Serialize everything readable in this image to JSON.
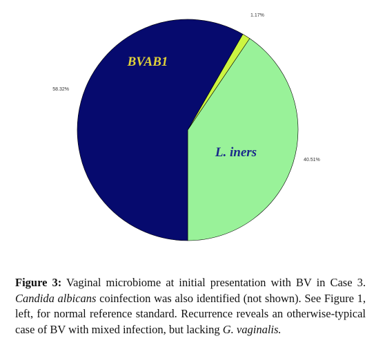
{
  "chart_data": {
    "type": "pie",
    "slices": [
      {
        "label": "L. iners",
        "value": 40.51,
        "value_label": "40.51%",
        "color": "#99f299"
      },
      {
        "label": "",
        "value": 1.17,
        "value_label": "1.17%",
        "color": "#ccf542"
      },
      {
        "label": "BVAB1",
        "value": 58.32,
        "value_label": "58.32%",
        "color": "#060a6e"
      }
    ],
    "start": "6 o'clock, counterclockwise",
    "legend": "none",
    "slice_label_colors": {
      "L. iners": "#1a2a8a",
      "BVAB1": "#e0d23a"
    }
  },
  "caption": {
    "label": "Figure 3:",
    "parts": [
      {
        "text": " Vaginal microbiome at initial presentation with BV in Case 3. ",
        "italic": false
      },
      {
        "text": "Candida albicans",
        "italic": true
      },
      {
        "text": " coinfection was also identified (not shown). See Figure 1, left, for normal reference standard. Recurrence reveals an otherwise-typical case of BV with mixed infection, but lacking ",
        "italic": false
      },
      {
        "text": "G. vaginalis.",
        "italic": true
      }
    ]
  }
}
